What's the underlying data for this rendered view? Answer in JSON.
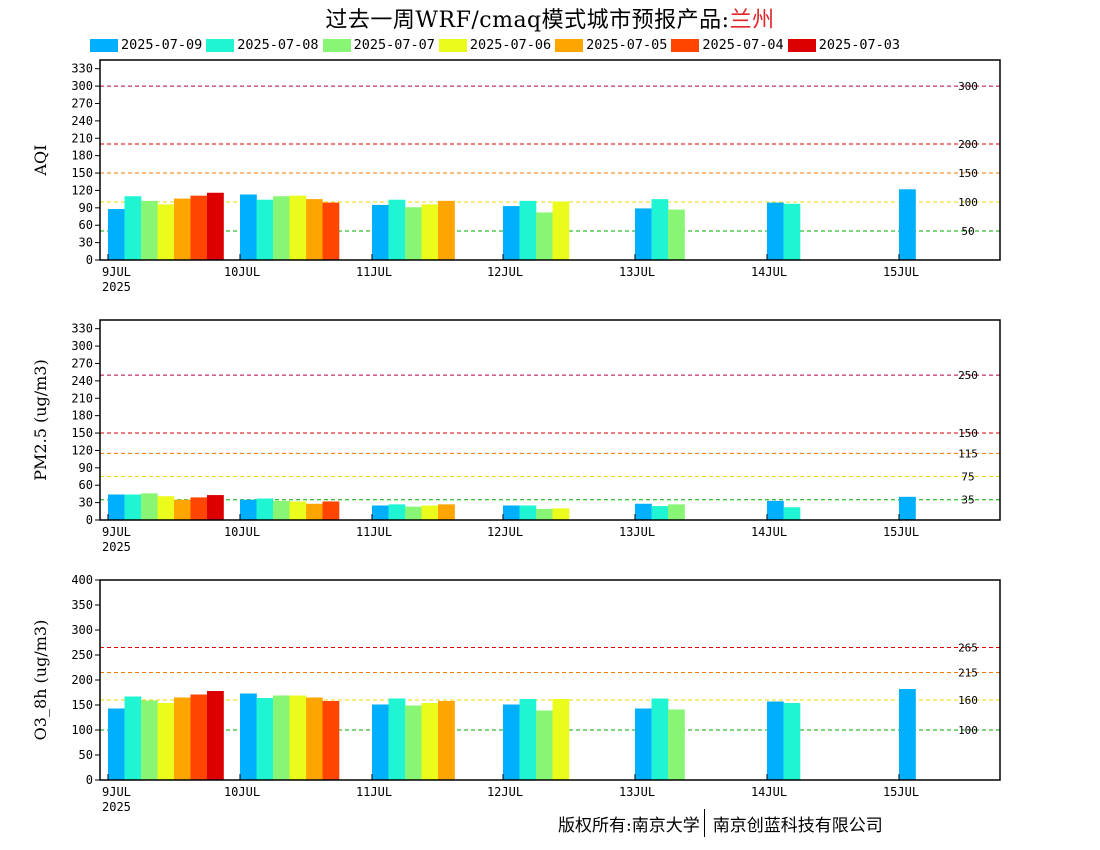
{
  "title": {
    "main": "过去一周WRF/cmaq模式城市预报产品:",
    "city": "兰州"
  },
  "legend": [
    {
      "label": "2025-07-09",
      "color": "#00b0ff"
    },
    {
      "label": "2025-07-08",
      "color": "#1ff5d2"
    },
    {
      "label": "2025-07-07",
      "color": "#88f574"
    },
    {
      "label": "2025-07-06",
      "color": "#ebfc1d"
    },
    {
      "label": "2025-07-05",
      "color": "#ffa500"
    },
    {
      "label": "2025-07-04",
      "color": "#ff4500"
    },
    {
      "label": "2025-07-03",
      "color": "#dc0000"
    }
  ],
  "footer": {
    "left": "版权所有:南京大学",
    "right": "南京创蓝科技有限公司"
  },
  "chart_data": [
    {
      "type": "bar",
      "ylabel": "AQI",
      "ylim": [
        0,
        345
      ],
      "yticks": [
        0,
        30,
        60,
        90,
        120,
        150,
        180,
        210,
        240,
        270,
        300,
        330
      ],
      "xlabels": [
        "9JUL",
        "10JUL",
        "11JUL",
        "12JUL",
        "13JUL",
        "14JUL",
        "15JUL"
      ],
      "xyear": "2025",
      "thresholds": [
        {
          "value": 300,
          "label": "300",
          "color": "#b0004b"
        },
        {
          "value": 200,
          "label": "200",
          "color": "#e00000"
        },
        {
          "value": 150,
          "label": "150",
          "color": "#f07800"
        },
        {
          "value": 100,
          "label": "100",
          "color": "#f2d800"
        },
        {
          "value": 50,
          "label": "50",
          "color": "#00a800"
        }
      ],
      "series": [
        {
          "name": "2025-07-09",
          "values": [
            88,
            113,
            95,
            93,
            89,
            99,
            122
          ]
        },
        {
          "name": "2025-07-08",
          "values": [
            110,
            104,
            104,
            102,
            105,
            97,
            null
          ]
        },
        {
          "name": "2025-07-07",
          "values": [
            102,
            110,
            91,
            82,
            87,
            null,
            null
          ]
        },
        {
          "name": "2025-07-06",
          "values": [
            96,
            111,
            96,
            101,
            null,
            null,
            null
          ]
        },
        {
          "name": "2025-07-05",
          "values": [
            106,
            105,
            102,
            null,
            null,
            null,
            null
          ]
        },
        {
          "name": "2025-07-04",
          "values": [
            111,
            99,
            null,
            null,
            null,
            null,
            null
          ]
        },
        {
          "name": "2025-07-03",
          "values": [
            116,
            null,
            null,
            null,
            null,
            null,
            null
          ]
        }
      ]
    },
    {
      "type": "bar",
      "ylabel": "PM2.5 (ug/m3)",
      "ylim": [
        0,
        345
      ],
      "yticks": [
        0,
        30,
        60,
        90,
        120,
        150,
        180,
        210,
        240,
        270,
        300,
        330
      ],
      "xlabels": [
        "9JUL",
        "10JUL",
        "11JUL",
        "12JUL",
        "13JUL",
        "14JUL",
        "15JUL"
      ],
      "xyear": "2025",
      "thresholds": [
        {
          "value": 250,
          "label": "250",
          "color": "#b0004b"
        },
        {
          "value": 150,
          "label": "150",
          "color": "#e00000"
        },
        {
          "value": 115,
          "label": "115",
          "color": "#f07800"
        },
        {
          "value": 75,
          "label": "75",
          "color": "#f2d800"
        },
        {
          "value": 35,
          "label": "35",
          "color": "#00a800"
        }
      ],
      "series": [
        {
          "name": "2025-07-09",
          "values": [
            44,
            35,
            25,
            25,
            28,
            33,
            40
          ]
        },
        {
          "name": "2025-07-08",
          "values": [
            44,
            37,
            27,
            25,
            24,
            22,
            null
          ]
        },
        {
          "name": "2025-07-07",
          "values": [
            46,
            33,
            23,
            19,
            27,
            null,
            null
          ]
        },
        {
          "name": "2025-07-06",
          "values": [
            41,
            32,
            25,
            20,
            null,
            null,
            null
          ]
        },
        {
          "name": "2025-07-05",
          "values": [
            35,
            28,
            27,
            null,
            null,
            null,
            null
          ]
        },
        {
          "name": "2025-07-04",
          "values": [
            39,
            32,
            null,
            null,
            null,
            null,
            null
          ]
        },
        {
          "name": "2025-07-03",
          "values": [
            43,
            null,
            null,
            null,
            null,
            null,
            null
          ]
        }
      ]
    },
    {
      "type": "bar",
      "ylabel": "O3_8h (ug/m3)",
      "ylim": [
        0,
        400
      ],
      "yticks": [
        0,
        50,
        100,
        150,
        200,
        250,
        300,
        350,
        400
      ],
      "xlabels": [
        "9JUL",
        "10JUL",
        "11JUL",
        "12JUL",
        "13JUL",
        "14JUL",
        "15JUL"
      ],
      "xyear": "2025",
      "thresholds": [
        {
          "value": 265,
          "label": "265",
          "color": "#e00000"
        },
        {
          "value": 215,
          "label": "215",
          "color": "#f07800"
        },
        {
          "value": 160,
          "label": "160",
          "color": "#f2d800"
        },
        {
          "value": 100,
          "label": "100",
          "color": "#00a800"
        }
      ],
      "series": [
        {
          "name": "2025-07-09",
          "values": [
            143,
            173,
            151,
            151,
            143,
            157,
            182
          ]
        },
        {
          "name": "2025-07-08",
          "values": [
            167,
            164,
            163,
            162,
            163,
            154,
            null
          ]
        },
        {
          "name": "2025-07-07",
          "values": [
            159,
            169,
            149,
            139,
            141,
            null,
            null
          ]
        },
        {
          "name": "2025-07-06",
          "values": [
            154,
            169,
            154,
            162,
            null,
            null,
            null
          ]
        },
        {
          "name": "2025-07-05",
          "values": [
            165,
            165,
            158,
            null,
            null,
            null,
            null
          ]
        },
        {
          "name": "2025-07-04",
          "values": [
            171,
            158,
            null,
            null,
            null,
            null,
            null
          ]
        },
        {
          "name": "2025-07-03",
          "values": [
            178,
            null,
            null,
            null,
            null,
            null,
            null
          ]
        }
      ]
    }
  ]
}
